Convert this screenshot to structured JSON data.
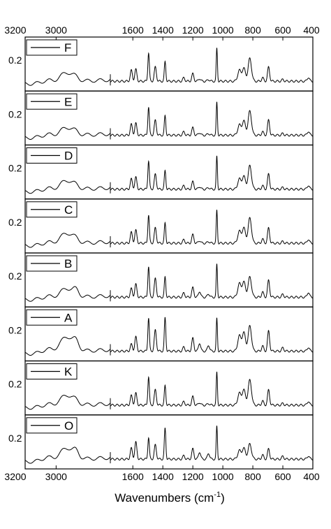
{
  "chart_data": {
    "type": "line",
    "xlabel": "Wavenumbers (cm",
    "xlabel_sup": "-1",
    "xlabel_end": ")",
    "x_axis": {
      "broken": true,
      "left_segment": {
        "range": [
          3200,
          2650
        ],
        "ticks": [
          "3200",
          "3000"
        ],
        "tick_values": [
          3200,
          3000
        ]
      },
      "right_segment": {
        "range": [
          1750,
          400
        ],
        "ticks": [
          "1600",
          "1400",
          "1200",
          "1000",
          "800",
          "600",
          "400"
        ],
        "tick_values": [
          1600,
          1400,
          1200,
          1000,
          800,
          600,
          400
        ]
      }
    },
    "scale_bar_label": "0.2",
    "grid": false,
    "legend_placement": "top-left",
    "peaks_cm-1": [
      3060,
      2930,
      2870,
      1610,
      1580,
      1495,
      1450,
      1385,
      1260,
      1200,
      1155,
      1095,
      1040,
      890,
      860,
      820,
      735,
      695,
      600,
      430
    ],
    "series": [
      {
        "name": "F",
        "heights": [
          0.07,
          0.28,
          0.05,
          0.32,
          0.35,
          0.85,
          0.42,
          0.58,
          0.1,
          0.22,
          0.08,
          0.05,
          0.98,
          0.32,
          0.38,
          0.68,
          0.1,
          0.42,
          0.05,
          0.12
        ]
      },
      {
        "name": "E",
        "heights": [
          0.07,
          0.25,
          0.05,
          0.32,
          0.35,
          0.85,
          0.44,
          0.58,
          0.1,
          0.22,
          0.08,
          0.05,
          0.98,
          0.3,
          0.42,
          0.72,
          0.1,
          0.45,
          0.05,
          0.12
        ]
      },
      {
        "name": "D",
        "heights": [
          0.07,
          0.28,
          0.05,
          0.3,
          0.35,
          0.85,
          0.44,
          0.55,
          0.1,
          0.22,
          0.08,
          0.05,
          0.98,
          0.3,
          0.38,
          0.7,
          0.1,
          0.45,
          0.05,
          0.12
        ]
      },
      {
        "name": "C",
        "heights": [
          0.07,
          0.32,
          0.06,
          0.32,
          0.38,
          0.85,
          0.45,
          0.6,
          0.1,
          0.25,
          0.08,
          0.05,
          0.98,
          0.35,
          0.45,
          0.75,
          0.12,
          0.45,
          0.05,
          0.12
        ]
      },
      {
        "name": "B",
        "heights": [
          0.07,
          0.28,
          0.15,
          0.25,
          0.38,
          0.92,
          0.55,
          0.6,
          0.12,
          0.28,
          0.18,
          0.1,
          0.98,
          0.4,
          0.45,
          0.6,
          0.15,
          0.5,
          0.08,
          0.15
        ]
      },
      {
        "name": "A",
        "heights": [
          0.1,
          0.45,
          0.18,
          0.2,
          0.42,
          1.0,
          0.62,
          1.0,
          0.12,
          0.38,
          0.25,
          0.18,
          0.98,
          0.45,
          0.55,
          0.75,
          0.15,
          0.6,
          0.1,
          0.12
        ]
      },
      {
        "name": "K",
        "heights": [
          0.07,
          0.32,
          0.06,
          0.28,
          0.35,
          0.85,
          0.45,
          0.58,
          0.1,
          0.25,
          0.08,
          0.05,
          0.98,
          0.35,
          0.45,
          0.75,
          0.12,
          0.45,
          0.05,
          0.12
        ]
      },
      {
        "name": "O",
        "heights": [
          0.1,
          0.35,
          0.15,
          0.32,
          0.5,
          0.65,
          0.42,
          0.92,
          0.1,
          0.3,
          0.22,
          0.18,
          0.98,
          0.25,
          0.32,
          0.45,
          0.12,
          0.3,
          0.08,
          0.1
        ]
      }
    ]
  }
}
